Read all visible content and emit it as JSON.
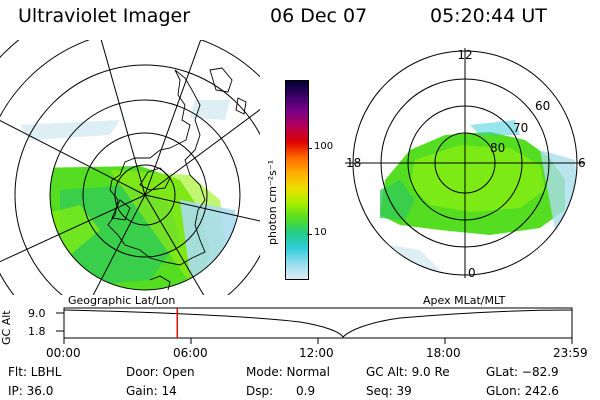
{
  "header": {
    "instrument": "Ultraviolet Imager",
    "date": "06 Dec 07",
    "time": "05:20:44 UT"
  },
  "left_map": {
    "caption": "Geographic Lat/Lon",
    "projection": "polar",
    "colors": {
      "green": "#44dd22",
      "lime": "#88ee11",
      "cyan": "#aaddee",
      "lines": "#000000"
    }
  },
  "right_map": {
    "caption": "Apex MLat/MLT",
    "mlt_labels": {
      "top": "12",
      "left": "18",
      "right": "6",
      "bottom": "0"
    },
    "lat_labels": [
      "60",
      "70",
      "80"
    ]
  },
  "colorbar": {
    "unit_label": "photon cm⁻²s⁻¹",
    "ticks": [
      "100",
      "10"
    ],
    "scale": "log",
    "colors_top_to_bottom": [
      "#000033",
      "#3a0066",
      "#7a0088",
      "#b50055",
      "#dd0000",
      "#ff6600",
      "#ffaa00",
      "#eedd00",
      "#aaee00",
      "#55dd22",
      "#22cc88",
      "#33ccdd",
      "#99ddee",
      "#ddeef5"
    ]
  },
  "altitude_plot": {
    "ylabel": "GC Alt",
    "yticks": [
      "9.0",
      "1.8"
    ],
    "xticks": [
      "00:00",
      "06:00",
      "12:00",
      "18:00",
      "23:59"
    ],
    "marker_color": "#dd0000",
    "marker_time": "05:20:44"
  },
  "footer": {
    "row1": {
      "filter": "Flt: LBHL",
      "door": "Door: Open",
      "mode": "Mode: Normal",
      "gc_alt": "GC Alt: 9.0 Re",
      "glat": "GLat: −82.9"
    },
    "row2": {
      "ip": "IP: 36.0",
      "gain": "Gain: 14",
      "dsp": "Dsp:      0.9",
      "seq": "Seq: 39",
      "glon": "GLon: 242.6"
    }
  }
}
